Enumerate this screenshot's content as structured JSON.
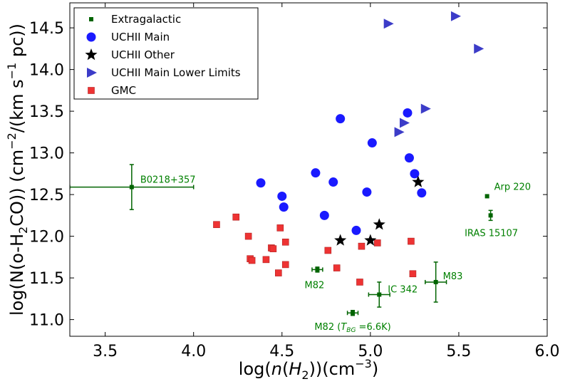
{
  "chart_data": {
    "type": "scatter",
    "title": "",
    "xlabel": "log(n(H2))(cm^-3)",
    "ylabel": "log(N(o-H2CO)) (cm^-2/(km s^-1 pc))",
    "xlabel_parts": {
      "pre": "log(",
      "n": "n",
      "mid": "(",
      "H": "H",
      "sub": "2",
      "post": "))(cm",
      "exp": "−3",
      "end": ")"
    },
    "ylabel_parts": {
      "pre": "log(N(o-H",
      "sub": "2",
      "mid": "CO)) (cm",
      "exp1": "−2",
      "mid2": "/(km s",
      "exp2": "−1",
      "end": " pc))"
    },
    "xlim": [
      3.3,
      6.0
    ],
    "ylim": [
      10.8,
      14.8
    ],
    "xticks": [
      3.5,
      4.0,
      4.5,
      5.0,
      5.5,
      6.0
    ],
    "xtick_labels": [
      "3.5",
      "4.0",
      "4.5",
      "5.0",
      "5.5",
      "6.0"
    ],
    "yticks": [
      11.0,
      11.5,
      12.0,
      12.5,
      13.0,
      13.5,
      14.0,
      14.5
    ],
    "ytick_labels": [
      "11.0",
      "11.5",
      "12.0",
      "12.5",
      "13.0",
      "13.5",
      "14.0",
      "14.5"
    ],
    "legend_position": "top-left",
    "series": [
      {
        "name": "Extragalactic",
        "marker": "square-small",
        "color": "#006400",
        "points": [
          {
            "x": 3.65,
            "y": 12.59,
            "xerr": 0.35,
            "yerr": 0.27,
            "label": "B0218+357"
          },
          {
            "x": 5.66,
            "y": 12.48,
            "label": "Arp 220"
          },
          {
            "x": 5.68,
            "y": 12.25,
            "xerr": 0.0,
            "yerr": 0.06,
            "label": "IRAS 15107"
          },
          {
            "x": 4.7,
            "y": 11.6,
            "xerr": 0.03,
            "yerr": 0.03,
            "label": "M82"
          },
          {
            "x": 5.05,
            "y": 11.3,
            "xerr": 0.06,
            "yerr": 0.15,
            "label": "IC 342"
          },
          {
            "x": 5.37,
            "y": 11.45,
            "xerr": 0.06,
            "yerr": 0.24,
            "label": "M83"
          },
          {
            "x": 4.9,
            "y": 11.08,
            "xerr": 0.03,
            "yerr": 0.03,
            "label_main": "M82 (",
            "label_sym": "T",
            "label_sub": "BG",
            "label_tail": " =6.6K)"
          }
        ]
      },
      {
        "name": "UCHII Main",
        "marker": "circle",
        "color": "#1a1aff",
        "points": [
          {
            "x": 4.38,
            "y": 12.64
          },
          {
            "x": 4.5,
            "y": 12.48
          },
          {
            "x": 4.51,
            "y": 12.35
          },
          {
            "x": 4.69,
            "y": 12.76
          },
          {
            "x": 4.74,
            "y": 12.25
          },
          {
            "x": 4.79,
            "y": 12.65
          },
          {
            "x": 4.83,
            "y": 13.41
          },
          {
            "x": 4.92,
            "y": 12.07
          },
          {
            "x": 4.98,
            "y": 12.53
          },
          {
            "x": 5.01,
            "y": 13.12
          },
          {
            "x": 5.21,
            "y": 13.48
          },
          {
            "x": 5.22,
            "y": 12.94
          },
          {
            "x": 5.25,
            "y": 12.75
          },
          {
            "x": 5.29,
            "y": 12.52
          }
        ]
      },
      {
        "name": "UCHII Other",
        "marker": "star",
        "color": "#000000",
        "points": [
          {
            "x": 4.83,
            "y": 11.95
          },
          {
            "x": 5.0,
            "y": 11.95
          },
          {
            "x": 5.05,
            "y": 12.14
          },
          {
            "x": 5.27,
            "y": 12.65
          }
        ]
      },
      {
        "name": "UCHII Main Lower Limits",
        "marker": "triangle-right",
        "color": "#3c3cc8",
        "points": [
          {
            "x": 5.1,
            "y": 14.55
          },
          {
            "x": 5.48,
            "y": 14.64
          },
          {
            "x": 5.61,
            "y": 14.25
          },
          {
            "x": 5.31,
            "y": 13.53
          },
          {
            "x": 5.19,
            "y": 13.36
          },
          {
            "x": 5.16,
            "y": 13.25
          }
        ]
      },
      {
        "name": "GMC",
        "marker": "square",
        "color": "#ee3333",
        "points": [
          {
            "x": 4.13,
            "y": 12.14
          },
          {
            "x": 4.24,
            "y": 12.23
          },
          {
            "x": 4.31,
            "y": 12.0
          },
          {
            "x": 4.32,
            "y": 11.73
          },
          {
            "x": 4.33,
            "y": 11.71
          },
          {
            "x": 4.41,
            "y": 11.72
          },
          {
            "x": 4.44,
            "y": 11.86
          },
          {
            "x": 4.45,
            "y": 11.85
          },
          {
            "x": 4.48,
            "y": 11.56
          },
          {
            "x": 4.49,
            "y": 12.1
          },
          {
            "x": 4.52,
            "y": 11.93
          },
          {
            "x": 4.52,
            "y": 11.66
          },
          {
            "x": 4.76,
            "y": 11.83
          },
          {
            "x": 4.81,
            "y": 11.62
          },
          {
            "x": 4.94,
            "y": 11.45
          },
          {
            "x": 4.95,
            "y": 11.88
          },
          {
            "x": 5.04,
            "y": 11.92
          },
          {
            "x": 5.23,
            "y": 11.94
          },
          {
            "x": 5.24,
            "y": 11.55
          }
        ]
      }
    ]
  }
}
